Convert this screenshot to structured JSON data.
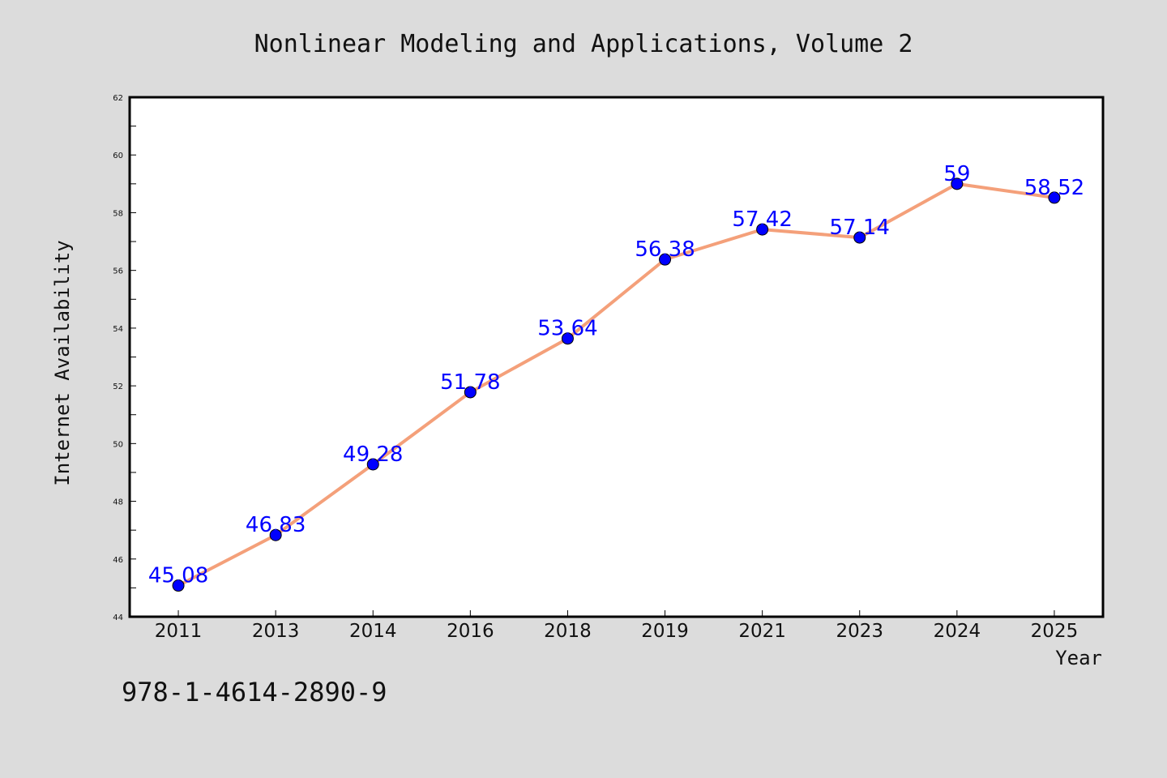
{
  "colors": {
    "background": "#dcdcdc",
    "plot_background": "#ffffff",
    "line": "#f4a07a",
    "marker": "#0000ff",
    "data_label": "#0000ff",
    "axis": "#000000"
  },
  "footer": {
    "isbn": "978-1-4614-2890-9"
  },
  "chart_data": {
    "type": "line",
    "title": "Nonlinear Modeling and Applications, Volume 2",
    "xlabel": "Year",
    "ylabel": "Internet Availability",
    "categories": [
      "2011",
      "2013",
      "2014",
      "2016",
      "2018",
      "2019",
      "2021",
      "2023",
      "2024",
      "2025"
    ],
    "series": [
      {
        "values": [
          45.08,
          46.83,
          49.28,
          51.78,
          53.64,
          56.38,
          57.42,
          57.14,
          59,
          58.52
        ]
      }
    ],
    "data_labels": [
      "45.08",
      "46.83",
      "49.28",
      "51.78",
      "53.64",
      "56.38",
      "57.42",
      "57.14",
      "59",
      "58.52"
    ],
    "ylim": [
      44,
      62
    ],
    "yticks": [
      "44",
      "46",
      "48",
      "50",
      "52",
      "54",
      "56",
      "58",
      "60",
      "62"
    ],
    "grid": false,
    "legend": "none"
  }
}
